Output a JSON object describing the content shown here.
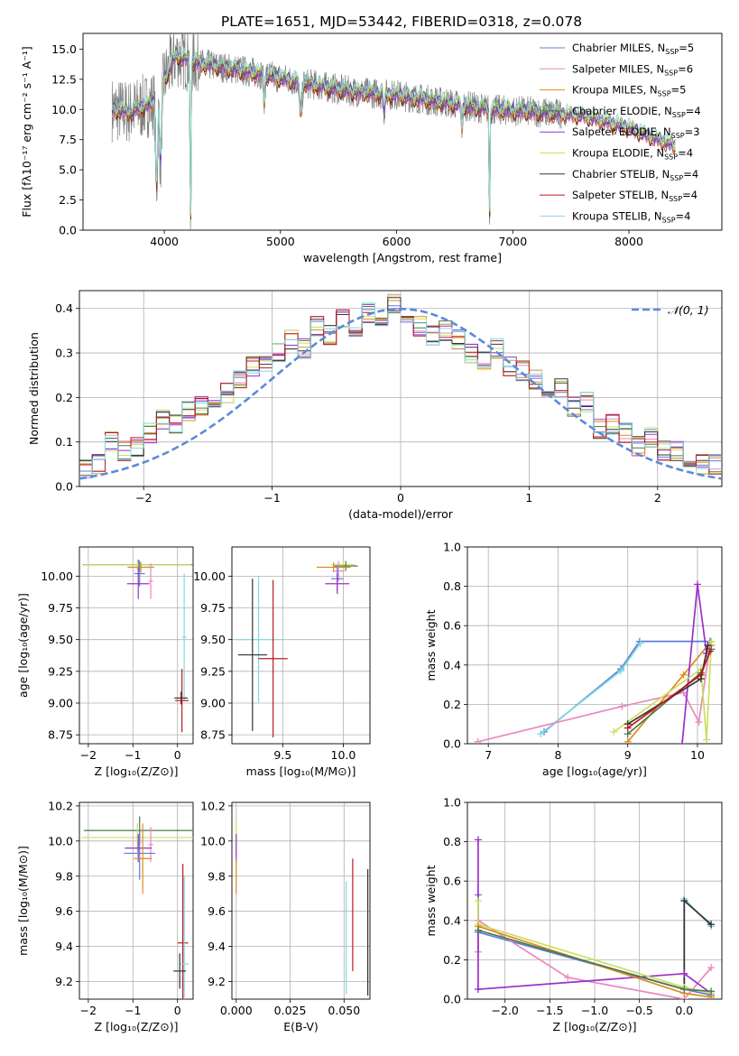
{
  "figure": {
    "title": "PLATE=1651, MJD=53442, FIBERID=0318, z=0.078"
  },
  "colors": {
    "Chabrier MILES": "#5b7fd6",
    "Salpeter MILES": "#e888c0",
    "Kroupa MILES": "#e08a20",
    "Chabrier ELODIE": "#4a7a4a",
    "Salpeter ELODIE": "#9b30c8",
    "Kroupa ELODIE": "#c8e060",
    "Chabrier STELIB": "#333333",
    "Salpeter STELIB": "#c01818",
    "Kroupa STELIB": "#80d8e0",
    "data": "#808080",
    "normal": "#5b8ad8"
  },
  "chart_data": [
    {
      "id": "spectrum",
      "type": "line",
      "title": "PLATE=1651, MJD=53442, FIBERID=0318, z=0.078",
      "xlabel": "wavelength [Angstrom, rest frame]",
      "ylabel": "Flux [fλ10⁻¹⁷ erg cm⁻² s⁻¹ A⁻¹]",
      "xlim": [
        3300,
        8800
      ],
      "ylim": [
        0,
        16.3
      ],
      "xticks": [
        "4000",
        "5000",
        "6000",
        "7000",
        "8000"
      ],
      "yticks": [
        "0.0",
        "2.5",
        "5.0",
        "7.5",
        "10.0",
        "12.5",
        "15.0"
      ],
      "legend": {
        "placement": "top-right",
        "entries": [
          {
            "label": "Chabrier MILES, N",
            "sub": "SSP",
            "suffix": "=5"
          },
          {
            "label": "Salpeter MILES, N",
            "sub": "SSP",
            "suffix": "=6"
          },
          {
            "label": "Kroupa MILES, N",
            "sub": "SSP",
            "suffix": "=5"
          },
          {
            "label": "Chabrier ELODIE, N",
            "sub": "SSP",
            "suffix": "=4"
          },
          {
            "label": "Salpeter ELODIE, N",
            "sub": "SSP",
            "suffix": "=3"
          },
          {
            "label": "Kroupa ELODIE, N",
            "sub": "SSP",
            "suffix": "=4"
          },
          {
            "label": "Chabrier STELIB, N",
            "sub": "SSP",
            "suffix": "=4"
          },
          {
            "label": "Salpeter STELIB, N",
            "sub": "SSP",
            "suffix": "=4"
          },
          {
            "label": "Kroupa STELIB, N",
            "sub": "SSP",
            "suffix": "=4"
          }
        ]
      },
      "continuum": {
        "x": [
          3550,
          3700,
          3900,
          4000,
          4100,
          4300,
          4500,
          4800,
          5200,
          5600,
          6000,
          6400,
          6800,
          7200,
          7600,
          8000,
          8200,
          8400
        ],
        "y": [
          10.0,
          9.8,
          10.5,
          12.5,
          14.5,
          13.8,
          13.5,
          13.0,
          12.2,
          11.5,
          11.2,
          10.6,
          10.0,
          9.8,
          9.5,
          8.5,
          7.7,
          7.0
        ]
      },
      "model_x_range": [
        3550,
        8400
      ],
      "data_x_range": [
        3550,
        7420
      ],
      "absorption_dips": [
        {
          "x": 3934,
          "depth": 7.5,
          "width": 12
        },
        {
          "x": 3968,
          "depth": 6.5,
          "width": 12
        },
        {
          "x": 4226,
          "depth": 14.0,
          "width": 6
        },
        {
          "x": 4861,
          "depth": 2.5,
          "width": 8
        },
        {
          "x": 5175,
          "depth": 2.5,
          "width": 15
        },
        {
          "x": 5893,
          "depth": 1.5,
          "width": 8
        },
        {
          "x": 6563,
          "depth": 2.0,
          "width": 8
        },
        {
          "x": 6800,
          "depth": 10.0,
          "width": 5
        }
      ]
    },
    {
      "id": "residuals",
      "type": "line",
      "xlabel": "(data-model)/error",
      "ylabel": "Normed distribution",
      "xlim": [
        -2.5,
        2.5
      ],
      "ylim": [
        0,
        0.44
      ],
      "xticks": [
        "-2",
        "-1",
        "0",
        "1",
        "2"
      ],
      "yticks": [
        "0.0",
        "0.1",
        "0.2",
        "0.3",
        "0.4"
      ],
      "legend": {
        "placement": "top-right",
        "entries": [
          {
            "label": "𝒩(0, 1)"
          }
        ]
      },
      "bin_centers": [
        -2.45,
        -2.35,
        -2.25,
        -2.15,
        -2.05,
        -1.95,
        -1.85,
        -1.75,
        -1.65,
        -1.55,
        -1.45,
        -1.35,
        -1.25,
        -1.15,
        -1.05,
        -0.95,
        -0.85,
        -0.75,
        -0.65,
        -0.55,
        -0.45,
        -0.35,
        -0.25,
        -0.15,
        -0.05,
        0.05,
        0.15,
        0.25,
        0.35,
        0.45,
        0.55,
        0.65,
        0.75,
        0.85,
        0.95,
        1.05,
        1.15,
        1.25,
        1.35,
        1.45,
        1.55,
        1.65,
        1.75,
        1.85,
        1.95,
        2.05,
        2.15,
        2.25,
        2.35,
        2.45
      ],
      "histogram": [
        0.04,
        0.05,
        0.1,
        0.08,
        0.09,
        0.12,
        0.15,
        0.14,
        0.17,
        0.18,
        0.2,
        0.21,
        0.24,
        0.27,
        0.27,
        0.3,
        0.33,
        0.31,
        0.36,
        0.34,
        0.38,
        0.36,
        0.39,
        0.37,
        0.41,
        0.36,
        0.36,
        0.34,
        0.35,
        0.33,
        0.3,
        0.28,
        0.31,
        0.27,
        0.26,
        0.24,
        0.2,
        0.22,
        0.18,
        0.19,
        0.13,
        0.14,
        0.12,
        0.09,
        0.11,
        0.08,
        0.08,
        0.06,
        0.05,
        0.05
      ]
    },
    {
      "id": "age_vs_Z",
      "type": "scatter",
      "xlabel": "Z [log₁₀(Z/Z⊙)]",
      "ylabel": "age  [log₁₀(age/yr)]",
      "xlim": [
        -2.2,
        0.35
      ],
      "ylim": [
        8.68,
        10.23
      ],
      "xticks": [
        "-2",
        "-1",
        "0"
      ],
      "yticks": [
        "8.75",
        "9.00",
        "9.25",
        "9.50",
        "9.75",
        "10.00"
      ],
      "points": [
        {
          "model": "Chabrier ELODIE",
          "x": -0.87,
          "y": 10.09,
          "xerr": 1.25,
          "yerr": 0.04
        },
        {
          "model": "Kroupa ELODIE",
          "x": -0.9,
          "y": 10.09,
          "xerr": 1.2,
          "yerr": 0.04
        },
        {
          "model": "Kroupa MILES",
          "x": -0.82,
          "y": 10.07,
          "xerr": 0.3,
          "yerr": 0.04
        },
        {
          "model": "Chabrier MILES",
          "x": -0.85,
          "y": 10.02,
          "xerr": 0.12,
          "yerr": 0.1
        },
        {
          "model": "Salpeter ELODIE",
          "x": -0.88,
          "y": 9.94,
          "xerr": 0.25,
          "yerr": 0.12
        },
        {
          "model": "Salpeter MILES",
          "x": -0.6,
          "y": 9.96,
          "xerr": 0.05,
          "yerr": 0.14
        },
        {
          "model": "Kroupa STELIB",
          "x": 0.15,
          "y": 9.52,
          "xerr": 0.05,
          "yerr": 0.5
        },
        {
          "model": "Chabrier STELIB",
          "x": 0.08,
          "y": 9.04,
          "xerr": 0.15,
          "yerr": 0.05
        },
        {
          "model": "Salpeter STELIB",
          "x": 0.1,
          "y": 9.02,
          "xerr": 0.15,
          "yerr": 0.25
        }
      ]
    },
    {
      "id": "age_vs_mass",
      "type": "scatter",
      "xlabel": "mass [log₁₀(M/M⊙)]",
      "ylabel": "",
      "xlim": [
        9.08,
        10.22
      ],
      "ylim": [
        8.68,
        10.23
      ],
      "xticks": [
        "9.5",
        "10.0"
      ],
      "yticks": [
        "8.75",
        "9.00",
        "9.25",
        "9.50",
        "9.75",
        "10.00"
      ],
      "points": [
        {
          "model": "Kroupa ELODIE",
          "x": 10.0,
          "y": 10.09,
          "xerr": 0.1,
          "yerr": 0.04
        },
        {
          "model": "Chabrier ELODIE",
          "x": 10.02,
          "y": 10.08,
          "xerr": 0.1,
          "yerr": 0.04
        },
        {
          "model": "Kroupa MILES",
          "x": 9.92,
          "y": 10.07,
          "xerr": 0.14,
          "yerr": 0.04
        },
        {
          "model": "Salpeter MILES",
          "x": 9.96,
          "y": 10.04,
          "xerr": 0.05,
          "yerr": 0.08
        },
        {
          "model": "Chabrier MILES",
          "x": 9.95,
          "y": 9.98,
          "xerr": 0.05,
          "yerr": 0.1
        },
        {
          "model": "Salpeter ELODIE",
          "x": 9.95,
          "y": 9.94,
          "xerr": 0.1,
          "yerr": 0.08
        },
        {
          "model": "Kroupa STELIB",
          "x": 9.3,
          "y": 9.5,
          "xerr": 0.2,
          "yerr": 0.5
        },
        {
          "model": "Chabrier STELIB",
          "x": 9.25,
          "y": 9.38,
          "xerr": 0.12,
          "yerr": 0.6
        },
        {
          "model": "Salpeter STELIB",
          "x": 9.42,
          "y": 9.35,
          "xerr": 0.12,
          "yerr": 0.62
        }
      ]
    },
    {
      "id": "weight_vs_age",
      "type": "line",
      "xlabel": "age  [log₁₀(age/yr)]",
      "ylabel": "mass weight",
      "xlim": [
        6.7,
        10.35
      ],
      "ylim": [
        0,
        1
      ],
      "xticks": [
        "7",
        "8",
        "9",
        "10"
      ],
      "yticks": [
        "0.0",
        "0.2",
        "0.4",
        "0.6",
        "0.8",
        "1.0"
      ],
      "series": [
        {
          "model": "Chabrier MILES",
          "x": [
            7.8,
            8.9,
            9.17,
            10.18,
            10.2
          ],
          "y": [
            0.06,
            0.38,
            0.52,
            0.52,
            0.52
          ]
        },
        {
          "model": "Kroupa STELIB",
          "x": [
            7.75,
            8.9,
            9.18
          ],
          "y": [
            0.05,
            0.37,
            0.51
          ]
        },
        {
          "model": "Salpeter MILES",
          "x": [
            6.85,
            8.92,
            9.8,
            10.02,
            10.18
          ],
          "y": [
            0.01,
            0.19,
            0.26,
            0.11,
            0.5
          ]
        },
        {
          "model": "Kroupa MILES",
          "x": [
            9.0,
            9.8,
            10.15,
            10.2
          ],
          "y": [
            0.01,
            0.35,
            0.5,
            0.5
          ]
        },
        {
          "model": "Salpeter ELODIE",
          "x": [
            9.78,
            10.0,
            10.13
          ],
          "y": [
            0.0,
            0.81,
            0.46
          ]
        },
        {
          "model": "Kroupa ELODIE",
          "x": [
            8.8,
            10.05,
            10.13,
            10.2
          ],
          "y": [
            0.06,
            0.38,
            0.02,
            0.52
          ]
        },
        {
          "model": "Chabrier ELODIE",
          "x": [
            9.0,
            10.05,
            10.2
          ],
          "y": [
            0.05,
            0.36,
            0.48
          ]
        },
        {
          "model": "Chabrier STELIB",
          "x": [
            9.0,
            10.05,
            10.15
          ],
          "y": [
            0.1,
            0.33,
            0.5
          ]
        },
        {
          "model": "Salpeter STELIB",
          "x": [
            9.0,
            10.05,
            10.18
          ],
          "y": [
            0.08,
            0.35,
            0.47
          ]
        }
      ]
    },
    {
      "id": "mass_vs_Z",
      "type": "scatter",
      "xlabel": "Z [log₁₀(Z/Z⊙)]",
      "ylabel": "mass [log₁₀(M/M⊙)]",
      "xlim": [
        -2.2,
        0.35
      ],
      "ylim": [
        9.1,
        10.22
      ],
      "xticks": [
        "-2",
        "-1",
        "0"
      ],
      "yticks": [
        "9.2",
        "9.4",
        "9.6",
        "9.8",
        "10.0",
        "10.2"
      ],
      "points": [
        {
          "model": "Chabrier ELODIE",
          "x": -0.85,
          "y": 10.06,
          "xerr": 1.25,
          "yerr": 0.08
        },
        {
          "model": "Kroupa ELODIE",
          "x": -0.9,
          "y": 10.02,
          "xerr": 1.25,
          "yerr": 0.08
        },
        {
          "model": "Salpeter MILES",
          "x": -0.6,
          "y": 9.98,
          "xerr": 0.05,
          "yerr": 0.1
        },
        {
          "model": "Salpeter ELODIE",
          "x": -0.88,
          "y": 9.96,
          "xerr": 0.3,
          "yerr": 0.08
        },
        {
          "model": "Chabrier MILES",
          "x": -0.85,
          "y": 9.93,
          "xerr": 0.35,
          "yerr": 0.15
        },
        {
          "model": "Kroupa MILES",
          "x": -0.78,
          "y": 9.9,
          "xerr": 0.2,
          "yerr": 0.2
        },
        {
          "model": "Salpeter STELIB",
          "x": 0.12,
          "y": 9.42,
          "xerr": 0.12,
          "yerr": 0.45
        },
        {
          "model": "Kroupa STELIB",
          "x": 0.15,
          "y": 9.3,
          "xerr": 0.1,
          "yerr": 0.5
        },
        {
          "model": "Chabrier STELIB",
          "x": 0.05,
          "y": 9.26,
          "xerr": 0.14,
          "yerr": 0.1
        }
      ]
    },
    {
      "id": "mass_vs_EBV",
      "type": "scatter",
      "xlabel": "E(B-V)",
      "ylabel": "",
      "xlim": [
        -0.002,
        0.062
      ],
      "ylim": [
        9.1,
        10.22
      ],
      "xticks": [
        "0.000",
        "0.025",
        "0.050"
      ],
      "yticks": [
        "9.2",
        "9.4",
        "9.6",
        "9.8",
        "10.0",
        "10.2"
      ],
      "points": [
        {
          "model": "Kroupa ELODIE",
          "x": 0.0,
          "y": 10.02,
          "xerr": 0.0,
          "yerr": 0.1
        },
        {
          "model": "Salpeter ELODIE",
          "x": 0.0,
          "y": 9.96,
          "xerr": 0.0,
          "yerr": 0.08
        },
        {
          "model": "Kroupa MILES",
          "x": 0.0,
          "y": 9.8,
          "xerr": 0.0,
          "yerr": 0.1
        },
        {
          "model": "Salpeter STELIB",
          "x": 0.054,
          "y": 9.58,
          "xerr": 0.0,
          "yerr": 0.32
        },
        {
          "model": "Kroupa STELIB",
          "x": 0.051,
          "y": 9.45,
          "xerr": 0.0,
          "yerr": 0.32
        },
        {
          "model": "Chabrier STELIB",
          "x": 0.061,
          "y": 9.48,
          "xerr": 0.0,
          "yerr": 0.36
        }
      ]
    },
    {
      "id": "weight_vs_Z",
      "type": "line",
      "xlabel": "Z [log₁₀(Z/Z⊙)]",
      "ylabel": "mass weight",
      "xlim": [
        -2.42,
        0.42
      ],
      "ylim": [
        0,
        1
      ],
      "xticks": [
        "-2.0",
        "-1.5",
        "-1.0",
        "-0.5",
        "0.0"
      ],
      "yticks": [
        "0.0",
        "0.2",
        "0.4",
        "0.6",
        "0.8",
        "1.0"
      ],
      "series": [
        {
          "model": "Chabrier MILES",
          "x": [
            -2.3,
            -2.3,
            0.0,
            0.3
          ],
          "y": [
            0.53,
            0.34,
            0.05,
            0.02
          ]
        },
        {
          "model": "Kroupa STELIB",
          "x": [
            0.0,
            0.0,
            0.3
          ],
          "y": [
            0.05,
            0.51,
            0.37
          ]
        },
        {
          "model": "Chabrier STELIB",
          "x": [
            0.0,
            0.0,
            0.3
          ],
          "y": [
            0.06,
            0.5,
            0.38
          ]
        },
        {
          "model": "Salpeter MILES",
          "x": [
            -2.3,
            -2.3,
            -1.3,
            0.0,
            0.3
          ],
          "y": [
            0.24,
            0.4,
            0.11,
            0.0,
            0.16
          ]
        },
        {
          "model": "Salpeter ELODIE",
          "x": [
            -2.3,
            -2.3,
            0.0,
            0.3
          ],
          "y": [
            0.81,
            0.05,
            0.13,
            0.03
          ]
        },
        {
          "model": "Kroupa ELODIE",
          "x": [
            -2.3,
            -2.3,
            0.0,
            0.3
          ],
          "y": [
            0.5,
            0.38,
            0.06,
            0.03
          ]
        },
        {
          "model": "Kroupa MILES",
          "x": [
            -2.3,
            0.0,
            0.3
          ],
          "y": [
            0.37,
            0.03,
            0.01
          ]
        },
        {
          "model": "Chabrier ELODIE",
          "x": [
            -2.3,
            0.0,
            0.3
          ],
          "y": [
            0.35,
            0.05,
            0.04
          ]
        }
      ]
    }
  ]
}
